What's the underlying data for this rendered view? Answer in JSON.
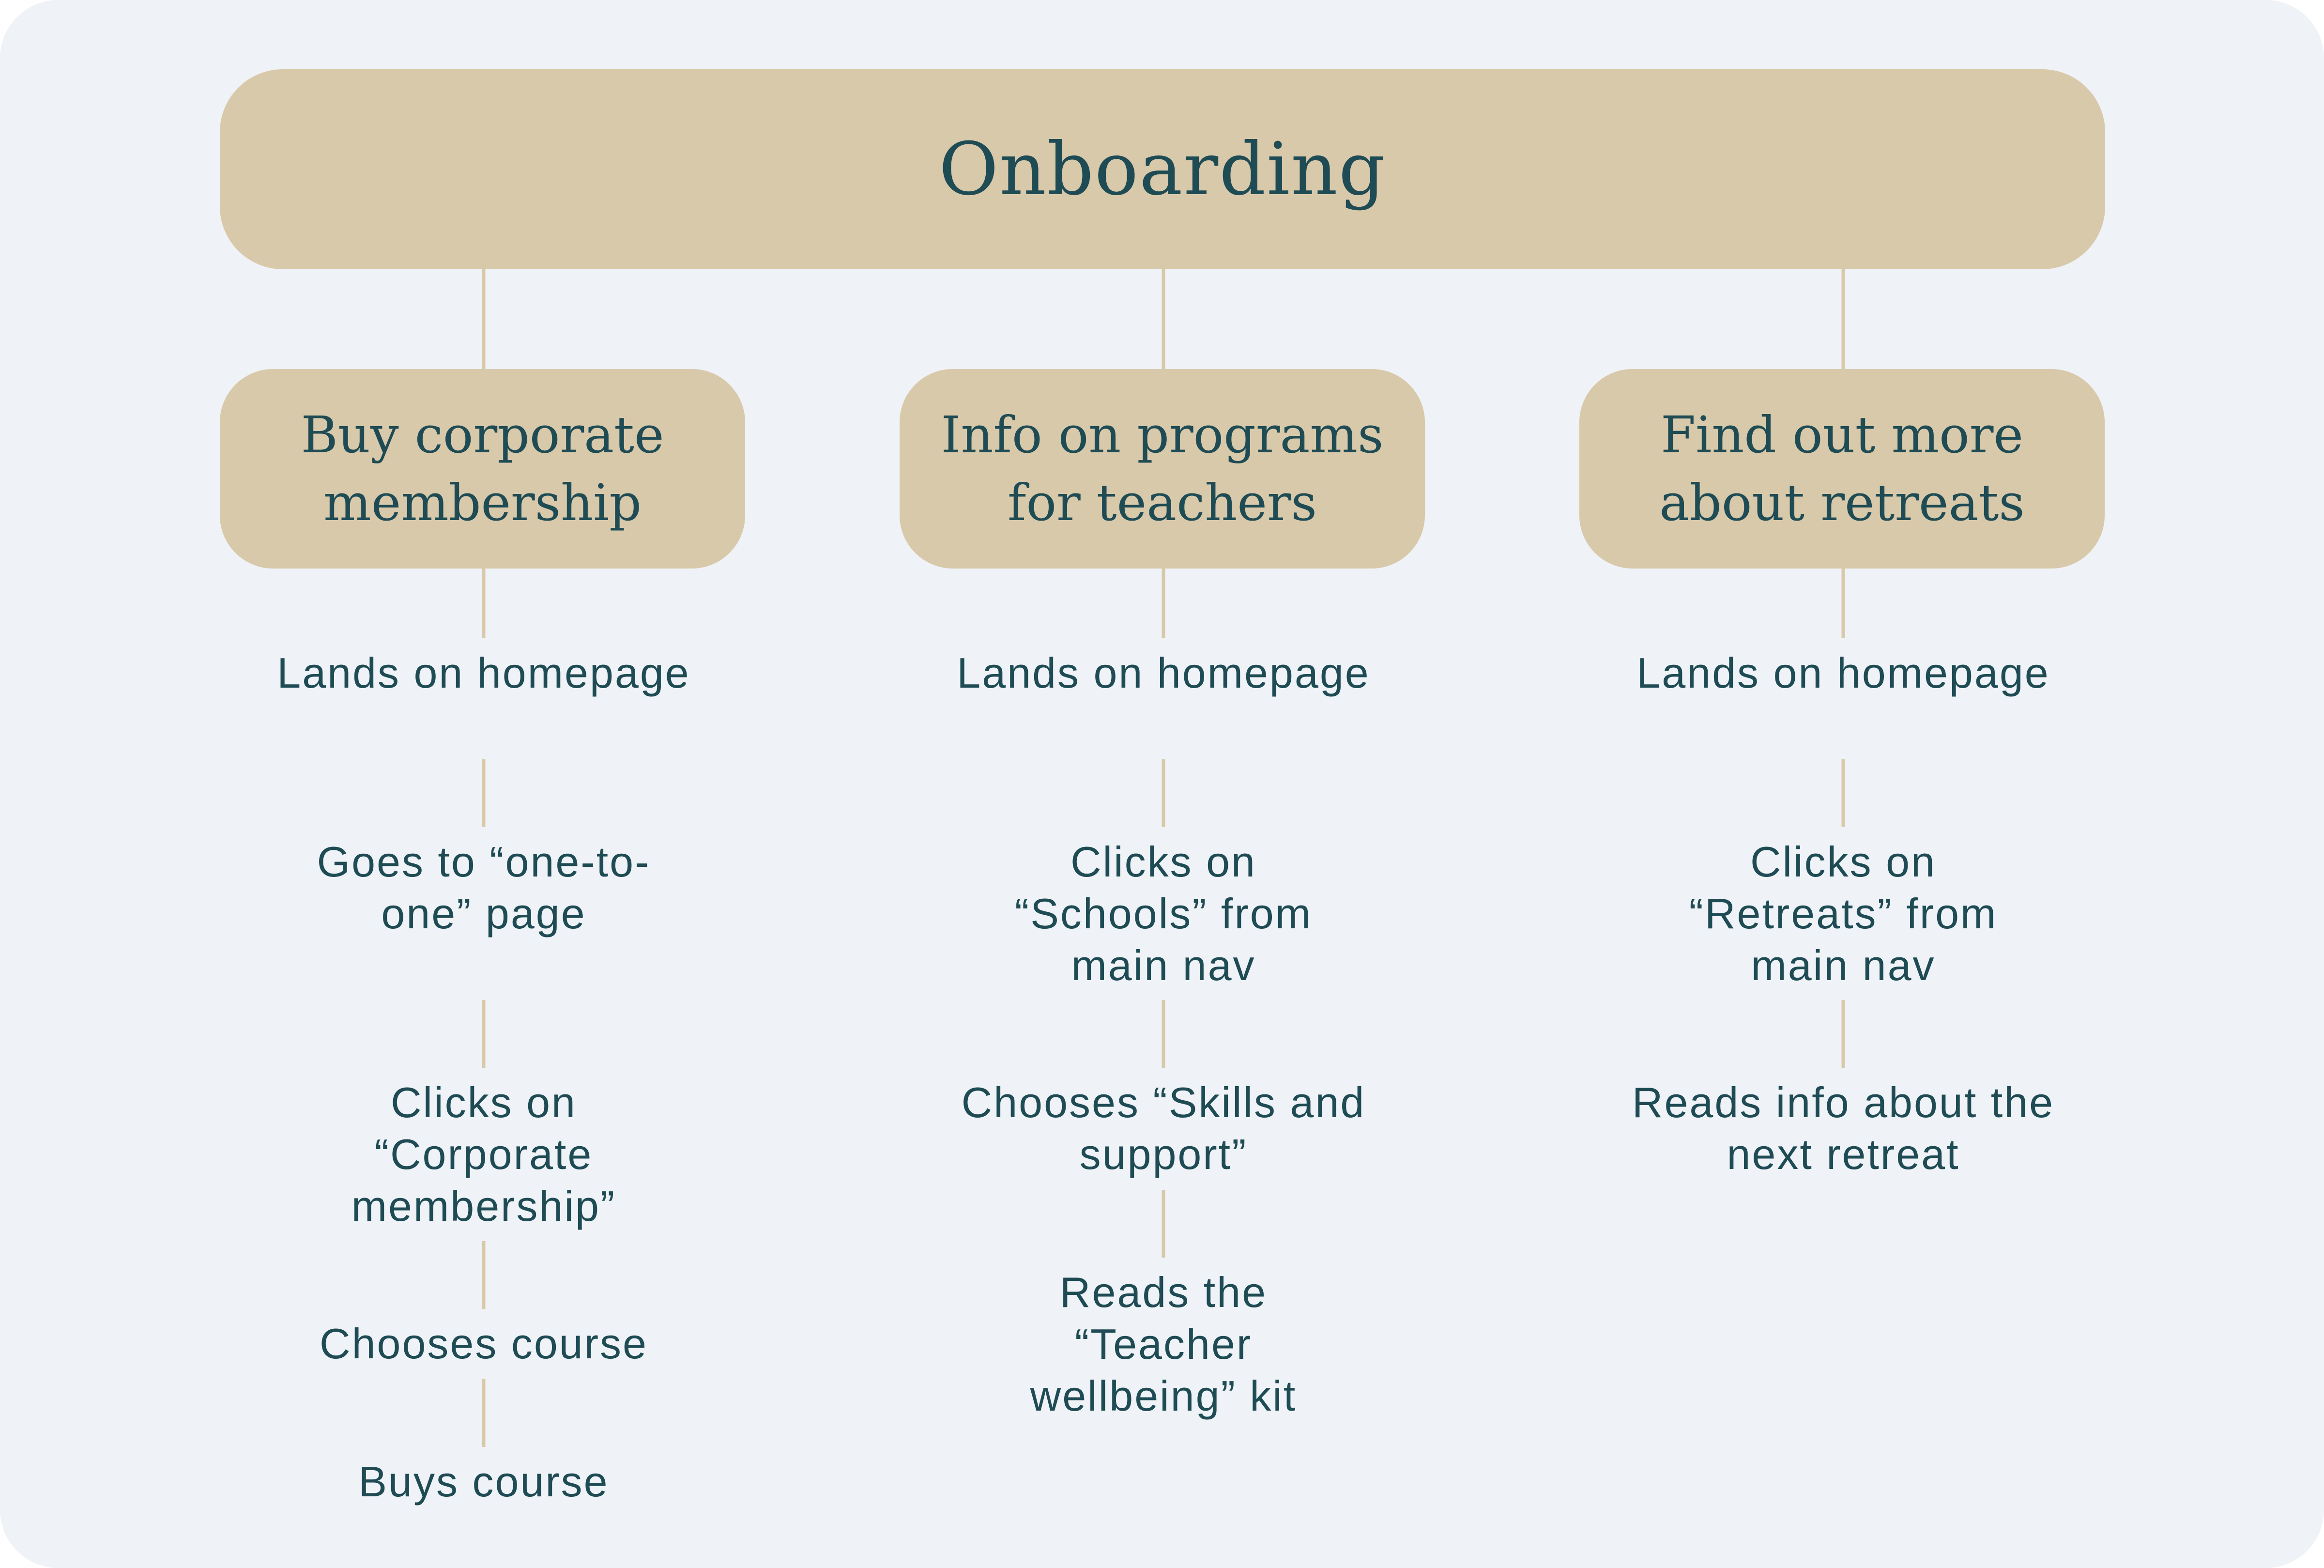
{
  "diagram": {
    "root": {
      "label": "Onboarding"
    },
    "branches": [
      {
        "label": "Buy corporate membership",
        "steps": [
          "Lands on homepage",
          "Goes to “one-to-one” page",
          "Clicks on “Corporate membership”",
          "Chooses course",
          "Buys course"
        ]
      },
      {
        "label": "Info on programs for teachers",
        "steps": [
          "Lands on homepage",
          "Clicks on “Schools” from main nav",
          "Chooses “Skills and support”",
          "Reads the “Teacher wellbeing” kit"
        ]
      },
      {
        "label": "Find out more about retreats",
        "steps": [
          "Lands on homepage",
          "Clicks on “Retreats” from main nav",
          "Reads info about the next retreat"
        ]
      }
    ],
    "colors": {
      "background": "#eff2f6",
      "box_fill": "#d8c9aa",
      "connector": "#d8c9aa",
      "text": "#1e4b54"
    }
  }
}
